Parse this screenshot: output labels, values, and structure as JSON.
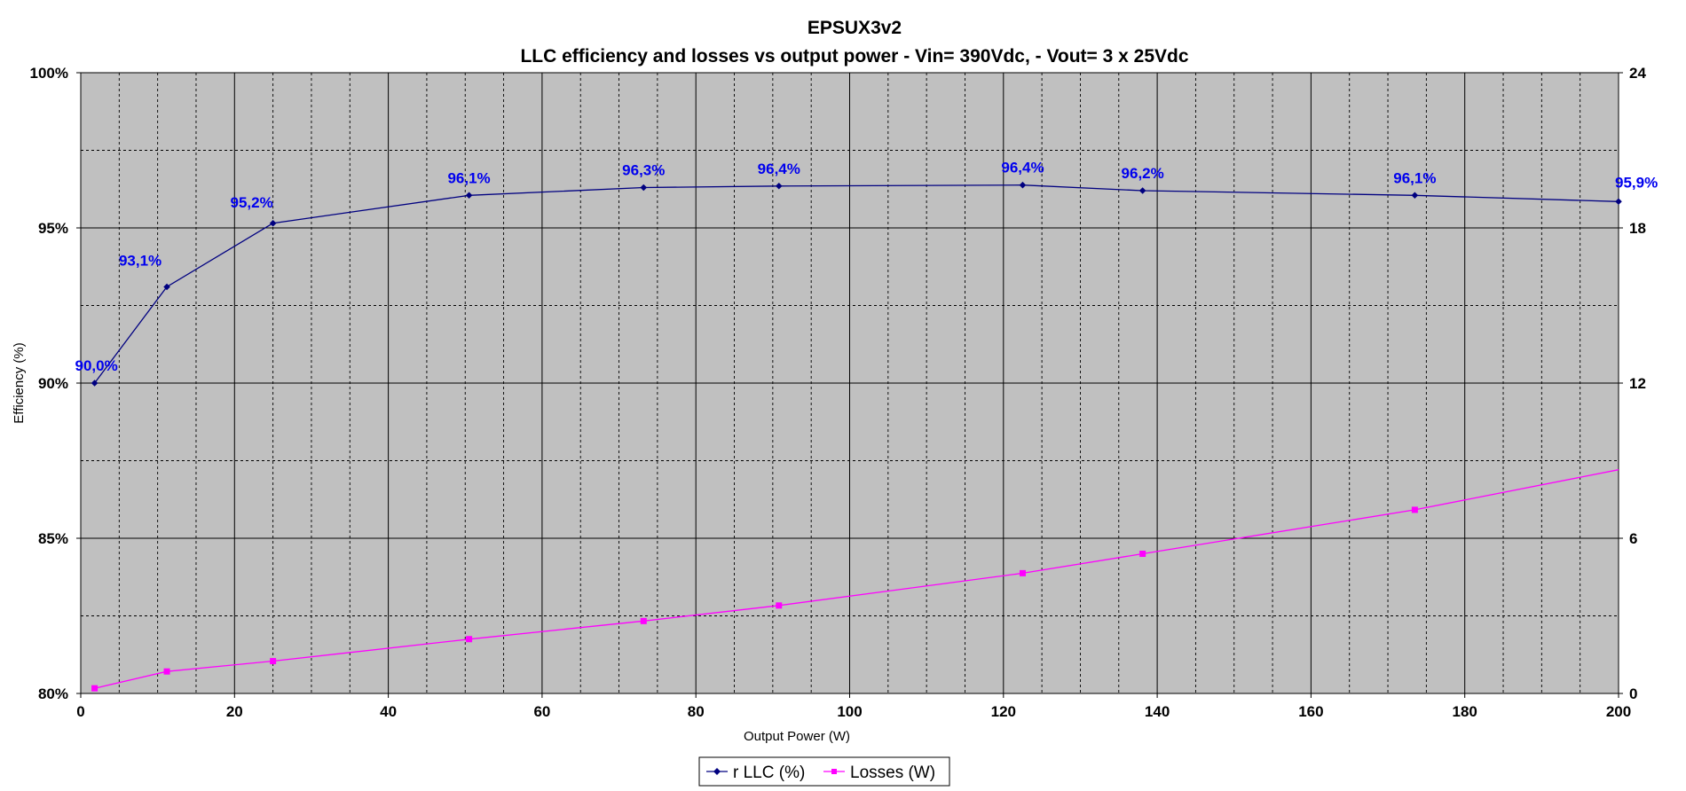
{
  "chart_data": {
    "type": "line",
    "title": "EPSUX3v2",
    "subtitle": "LLC  efficiency  and losses vs output power -  Vin= 390Vdc, - Vout= 3 x 25Vdc",
    "xlabel": "Output Power (W)",
    "ylabel": "Efficiency (%)",
    "y2label": "",
    "xlim": [
      0,
      200
    ],
    "ylim": [
      80,
      100
    ],
    "y2lim": [
      0,
      24
    ],
    "x_ticks": [
      "0",
      "20",
      "40",
      "60",
      "80",
      "100",
      "120",
      "140",
      "160",
      "180",
      "200"
    ],
    "y_ticks": [
      "80%",
      "85%",
      "90%",
      "95%",
      "100%"
    ],
    "y2_ticks": [
      "0",
      "6",
      "12",
      "18",
      "24"
    ],
    "grid": true,
    "plot_background": "#c0c0c0",
    "legend_position": "bottom",
    "series": [
      {
        "name": "r LLC (%)",
        "axis": "left",
        "color": "#000080",
        "marker": "diamond",
        "x": [
          1.8,
          11.2,
          25,
          50.5,
          73.2,
          90.8,
          122.5,
          138.1,
          173.5,
          200
        ],
        "values": [
          90.0,
          93.1,
          95.15,
          96.05,
          96.3,
          96.35,
          96.38,
          96.2,
          96.05,
          95.85
        ],
        "labels": [
          "90,0%",
          "93,1%",
          "95,2%",
          "96,1%",
          "96,3%",
          "96,4%",
          "96,4%",
          "96,2%",
          "96,1%",
          "95,9%"
        ]
      },
      {
        "name": "Losses (W)",
        "axis": "right",
        "color": "#ff00ff",
        "marker": "square",
        "x": [
          1.8,
          11.2,
          25,
          50.5,
          73.2,
          90.8,
          122.5,
          138.1,
          173.5,
          200
        ],
        "values": [
          0.2,
          0.85,
          1.25,
          2.1,
          2.8,
          3.4,
          4.65,
          5.4,
          7.1,
          8.65
        ],
        "marked": [
          true,
          true,
          true,
          true,
          true,
          true,
          true,
          true,
          true,
          false
        ]
      }
    ]
  }
}
